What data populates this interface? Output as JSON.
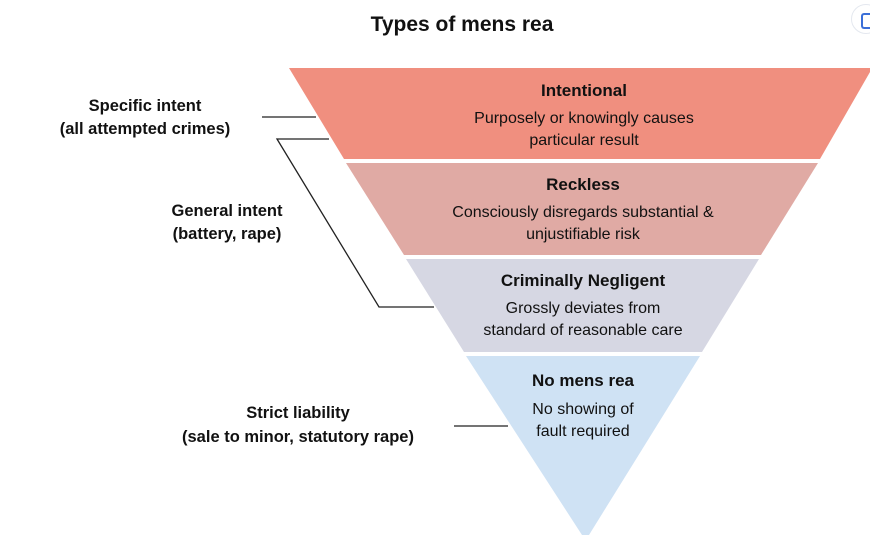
{
  "title": "Types of mens rea",
  "levels": [
    {
      "title": "Intentional",
      "desc1": "Purposely or knowingly causes",
      "desc2": "particular result",
      "color": "#f08f7f"
    },
    {
      "title": "Reckless",
      "desc1": "Consciously disregards substantial &",
      "desc2": "unjustifiable risk",
      "color": "#e0aaa4"
    },
    {
      "title": "Criminally Negligent",
      "desc1": "Grossly deviates from",
      "desc2": "standard of reasonable care",
      "color": "#d6d7e3"
    },
    {
      "title": "No mens rea",
      "desc1": "No showing of",
      "desc2": "fault required",
      "color": "#cfe2f4"
    }
  ],
  "labels": {
    "specific": {
      "line1": "Specific intent",
      "line2": "(all attempted crimes)"
    },
    "general": {
      "line1": "General intent",
      "line2": "(battery, rape)"
    },
    "strict": {
      "line1": "Strict liability",
      "line2": "(sale to minor, statutory rape)"
    }
  },
  "corner_icon": "expand-icon"
}
